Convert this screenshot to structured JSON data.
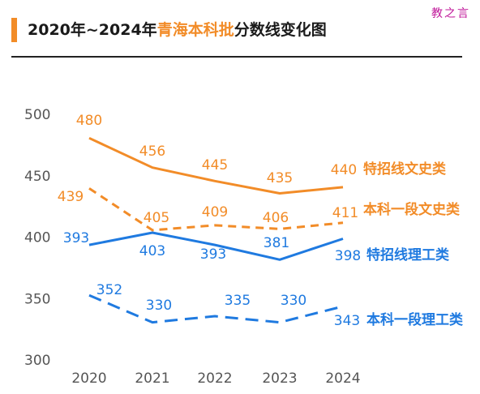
{
  "watermark": "教之言",
  "title": {
    "prefix": "2020年~2024年",
    "highlight": "青海本科批",
    "suffix": "分数线变化图"
  },
  "colors": {
    "orange": "#f28c28",
    "blue": "#1f7ae0",
    "axis_text": "#555555"
  },
  "chart_data": {
    "type": "line",
    "x": [
      "2020",
      "2021",
      "2022",
      "2023",
      "2024"
    ],
    "ylim": [
      300,
      500
    ],
    "yticks": [
      300,
      350,
      400,
      450,
      500
    ],
    "grid": false,
    "series": [
      {
        "name": "特招线文史类",
        "color": "orange",
        "dashed": false,
        "values": [
          480,
          456,
          445,
          435,
          440
        ]
      },
      {
        "name": "本科一段文史类",
        "color": "orange",
        "dashed": true,
        "values": [
          439,
          405,
          409,
          406,
          411
        ]
      },
      {
        "name": "特招线理工类",
        "color": "blue",
        "dashed": false,
        "values": [
          393,
          403,
          393,
          381,
          398
        ]
      },
      {
        "name": "本科一段理工类",
        "color": "blue",
        "dashed": true,
        "values": [
          352,
          330,
          335,
          330,
          343
        ]
      }
    ]
  }
}
